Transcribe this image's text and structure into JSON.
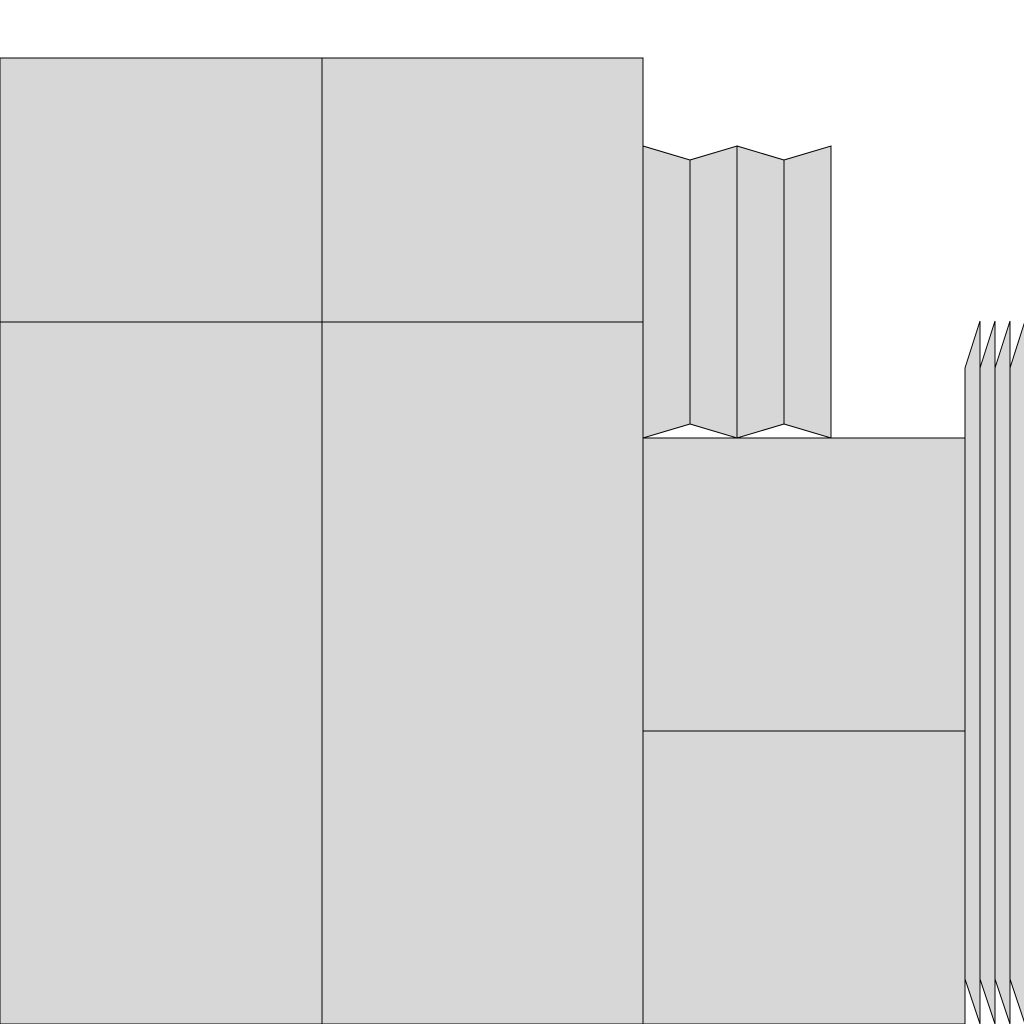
{
  "diagram": {
    "fill_color": "#d7d7d7",
    "stroke_color": "#000000",
    "background_color": "#ffffff"
  }
}
